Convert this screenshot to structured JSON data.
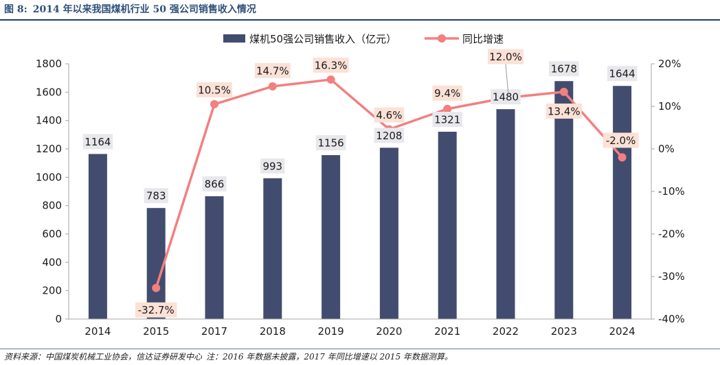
{
  "figure": {
    "label": "图 8:",
    "title": "2014 年以来我国煤机行业 50 强公司销售收入情况"
  },
  "footer": {
    "source": "资料来源：中国煤炭机械工业协会，信达证券研发中心",
    "note": "注：2016 年数据未披露，2017 年同比增速以 2015 年数据测算。"
  },
  "colors": {
    "bar": "#424c6e",
    "line": "#f37f7f",
    "bar_label_bg": "#e8e8ec",
    "line_label_bg": "#fbe1d6",
    "axis": "#a6a6a6"
  },
  "chart_data": {
    "type": "bar",
    "categories": [
      "2014",
      "2015",
      "2017",
      "2018",
      "2019",
      "2020",
      "2021",
      "2022",
      "2023",
      "2024"
    ],
    "series": [
      {
        "name": "煤机50强公司销售收入（亿元）",
        "type": "bar",
        "axis": "left",
        "values": [
          1164,
          783,
          866,
          993,
          1156,
          1208,
          1321,
          1480,
          1678,
          1644
        ],
        "labels": [
          "1164",
          "783",
          "866",
          "993",
          "1156",
          "1208",
          "1321",
          "1480",
          "1678",
          "1644"
        ]
      },
      {
        "name": "同比增速",
        "type": "line",
        "axis": "right",
        "values": [
          null,
          -32.7,
          10.5,
          14.7,
          16.3,
          4.6,
          9.4,
          12.0,
          13.4,
          -2.0
        ],
        "labels": [
          "",
          "-32.7%",
          "10.5%",
          "14.7%",
          "16.3%",
          "4.6%",
          "9.4%",
          "12.0%",
          "13.4%",
          "-2.0%"
        ]
      }
    ],
    "ylim": [
      0,
      1800
    ],
    "y_ticks": [
      "0",
      "200",
      "400",
      "600",
      "800",
      "1000",
      "1200",
      "1400",
      "1600",
      "1800"
    ],
    "y2lim": [
      -40,
      20
    ],
    "y2_ticks": [
      "-40%",
      "-30%",
      "-20%",
      "-10%",
      "0%",
      "10%",
      "20%"
    ],
    "grid": false,
    "legend_position": "top"
  }
}
